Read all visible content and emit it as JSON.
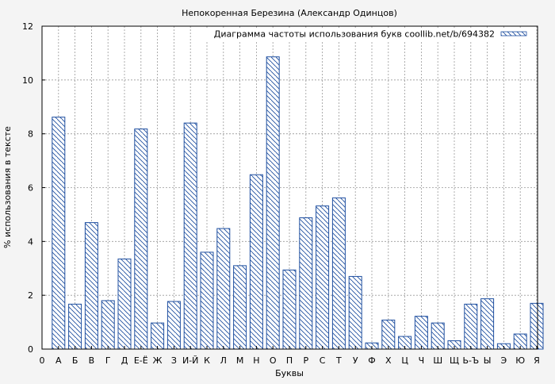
{
  "chart_data": {
    "type": "bar",
    "title": "Непокоренная Березина (Александр Одинцов)",
    "xlabel": "Буквы",
    "ylabel": "% использования в тексте",
    "legend": {
      "label": "Диаграмма частоты использования букв coollib.net/b/694382",
      "position": "top-right"
    },
    "ylim": [
      0,
      12
    ],
    "y_ticks": [
      0,
      2,
      4,
      6,
      8,
      10,
      12
    ],
    "x_start_label": "0",
    "categories": [
      "А",
      "Б",
      "В",
      "Г",
      "Д",
      "Е-Ё",
      "Ж",
      "З",
      "И-Й",
      "К",
      "Л",
      "М",
      "Н",
      "О",
      "П",
      "Р",
      "С",
      "Т",
      "У",
      "Ф",
      "Х",
      "Ц",
      "Ч",
      "Ш",
      "Щ",
      "Ь-Ъ",
      "Ы",
      "Э",
      "Ю",
      "Я"
    ],
    "values": [
      8.62,
      1.67,
      4.7,
      1.8,
      3.35,
      8.18,
      0.97,
      1.77,
      8.4,
      3.6,
      4.48,
      3.1,
      6.48,
      10.86,
      2.94,
      4.88,
      5.32,
      5.62,
      2.7,
      0.23,
      1.08,
      0.47,
      1.22,
      0.97,
      0.31,
      1.67,
      1.87,
      0.2,
      0.56,
      1.7
    ],
    "grid": true,
    "colors": {
      "bar_stroke": "#1f4fa0",
      "hatch": "#1f4fa0",
      "bar_fill": "#ffffff",
      "plot_background": "#ffffff",
      "figure_background": "#f4f4f4",
      "grid": "#999999"
    }
  }
}
